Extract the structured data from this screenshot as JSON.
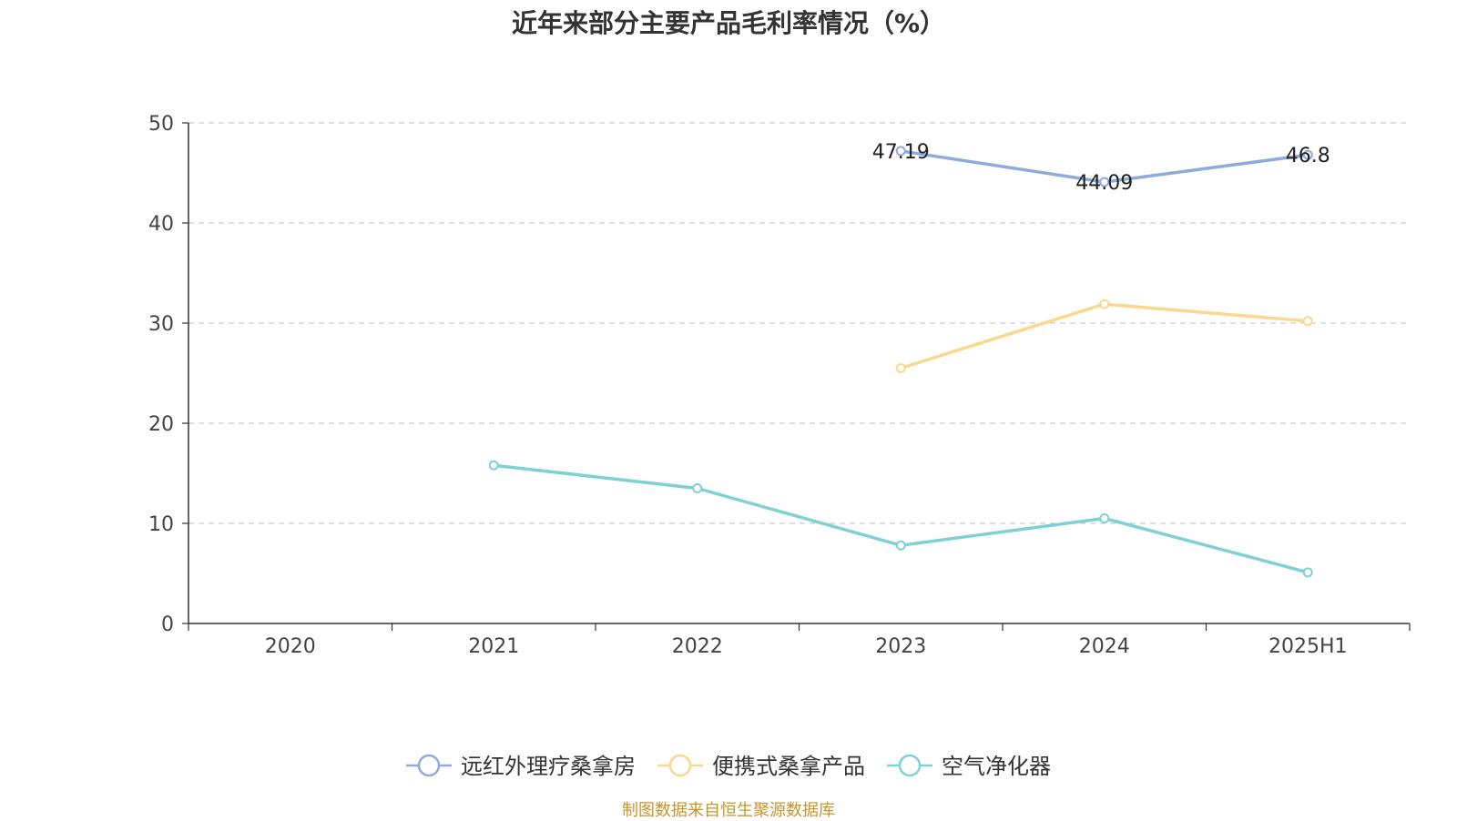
{
  "title": "近年来部分主要产品毛利率情况（%）",
  "source": "制图数据来自恒生聚源数据库",
  "source_color": "#c8952a",
  "chart_data": {
    "type": "line",
    "title": "近年来部分主要产品毛利率情况（%）",
    "categories": [
      "2020",
      "2021",
      "2022",
      "2023",
      "2024",
      "2025H1"
    ],
    "ylim": [
      0,
      50
    ],
    "yticks": [
      0,
      10,
      20,
      30,
      40,
      50
    ],
    "grid": true,
    "legend_position": "bottom",
    "series": [
      {
        "name": "远红外理疗桑拿房",
        "color": "#8faadc",
        "values": [
          null,
          null,
          null,
          47.19,
          44.09,
          46.8
        ],
        "labels": [
          null,
          null,
          null,
          "47.19",
          "44.09",
          "46.8"
        ]
      },
      {
        "name": "便携式桑拿产品",
        "color": "#fbd88f",
        "values": [
          null,
          null,
          null,
          25.5,
          31.9,
          30.2
        ],
        "labels": [
          null,
          null,
          null,
          null,
          null,
          null
        ]
      },
      {
        "name": "空气净化器",
        "color": "#7fd1d3",
        "values": [
          null,
          15.8,
          13.5,
          7.8,
          10.5,
          5.1
        ],
        "labels": [
          null,
          null,
          null,
          null,
          null,
          null
        ]
      }
    ]
  }
}
